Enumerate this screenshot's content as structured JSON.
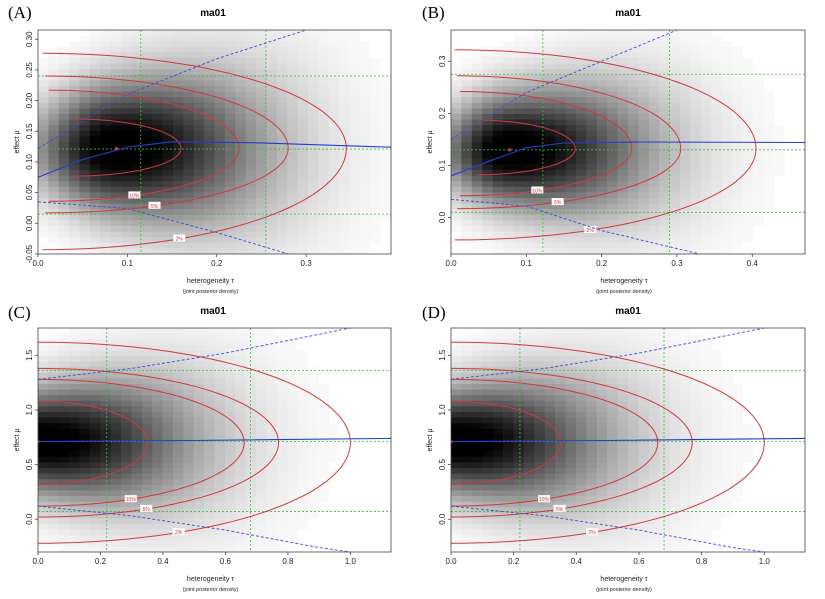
{
  "chart_data": [
    {
      "type": "heatmap",
      "panel_label": "(A)",
      "title": "ma01",
      "xlabel": "heterogeneity τ",
      "xsublabel": "(joint posterior density)",
      "ylabel": "effect μ",
      "xlim": [
        0,
        0.395
      ],
      "ylim": [
        -0.05,
        0.315
      ],
      "xticks": [
        0.0,
        0.1,
        0.2,
        0.3
      ],
      "xtick_labels": [
        "0.0",
        "0.1",
        "0.2",
        "0.3"
      ],
      "yticks": [
        -0.05,
        0.0,
        0.05,
        0.1,
        0.15,
        0.2,
        0.25,
        0.3
      ],
      "ytick_labels": [
        "-0.05",
        "0.00",
        "0.05",
        "0.10",
        "0.15",
        "0.20",
        "0.25",
        "0.30"
      ],
      "mode": [
        0.088,
        0.122
      ],
      "median_tau": 0.115,
      "quant95_tau": 0.255,
      "median_mu": 0.121,
      "ci_mu": [
        0.015,
        0.24
      ],
      "center_mu_line": [
        [
          0.0,
          0.075
        ],
        [
          0.05,
          0.104
        ],
        [
          0.1,
          0.124
        ],
        [
          0.15,
          0.133
        ],
        [
          0.25,
          0.131
        ],
        [
          0.395,
          0.124
        ]
      ],
      "upper_ci_line": [
        [
          0.0,
          0.122
        ],
        [
          0.1,
          0.21
        ],
        [
          0.2,
          0.268
        ],
        [
          0.3,
          0.315
        ]
      ],
      "lower_ci_line": [
        [
          0.0,
          0.035
        ],
        [
          0.1,
          0.024
        ],
        [
          0.2,
          -0.015
        ],
        [
          0.28,
          -0.05
        ]
      ],
      "contours": [
        {
          "label": "2%",
          "xmin": 0.005,
          "xmax": 0.345,
          "mu0": 0.122,
          "up": 0.155,
          "down": 0.165
        },
        {
          "label": "5%",
          "xmin": 0.008,
          "xmax": 0.28,
          "mu0": 0.122,
          "up": 0.118,
          "down": 0.105
        },
        {
          "label": "10%",
          "xmin": 0.012,
          "xmax": 0.225,
          "mu0": 0.122,
          "up": 0.095,
          "down": 0.086
        },
        {
          "label": "",
          "xmin": 0.04,
          "xmax": 0.16,
          "mu0": 0.122,
          "up": 0.048,
          "down": 0.045
        }
      ],
      "density": {
        "peak_tau": 0.085,
        "peak_mu": 0.122,
        "sd_mu": 0.058,
        "tau_scale_left": 0.06,
        "tau_scale_right": 0.115
      }
    },
    {
      "type": "heatmap",
      "panel_label": "(B)",
      "title": "ma01",
      "xlabel": "heterogeneity τ",
      "xsublabel": "(joint posterior density)",
      "ylabel": "effect μ",
      "xlim": [
        0,
        0.47
      ],
      "ylim": [
        -0.07,
        0.36
      ],
      "xticks": [
        0.0,
        0.1,
        0.2,
        0.3,
        0.4
      ],
      "xtick_labels": [
        "0.0",
        "0.1",
        "0.2",
        "0.3",
        "0.4"
      ],
      "yticks": [
        0.0,
        0.1,
        0.2,
        0.3
      ],
      "ytick_labels": [
        "0.0",
        "0.1",
        "0.2",
        "0.3"
      ],
      "mode": [
        0.078,
        0.13
      ],
      "median_tau": 0.122,
      "quant95_tau": 0.29,
      "median_mu": 0.13,
      "ci_mu": [
        0.01,
        0.275
      ],
      "center_mu_line": [
        [
          0.0,
          0.08
        ],
        [
          0.05,
          0.108
        ],
        [
          0.1,
          0.134
        ],
        [
          0.15,
          0.143
        ],
        [
          0.25,
          0.145
        ],
        [
          0.47,
          0.144
        ]
      ],
      "upper_ci_line": [
        [
          0.0,
          0.15
        ],
        [
          0.1,
          0.24
        ],
        [
          0.2,
          0.3
        ],
        [
          0.3,
          0.36
        ]
      ],
      "lower_ci_line": [
        [
          0.0,
          0.035
        ],
        [
          0.1,
          0.022
        ],
        [
          0.2,
          -0.025
        ],
        [
          0.33,
          -0.07
        ]
      ],
      "contours": [
        {
          "label": "2%",
          "xmin": 0.005,
          "xmax": 0.405,
          "mu0": 0.132,
          "up": 0.19,
          "down": 0.175
        },
        {
          "label": "5%",
          "xmin": 0.008,
          "xmax": 0.305,
          "mu0": 0.132,
          "up": 0.14,
          "down": 0.115
        },
        {
          "label": "10%",
          "xmin": 0.012,
          "xmax": 0.24,
          "mu0": 0.132,
          "up": 0.11,
          "down": 0.09
        },
        {
          "label": "",
          "xmin": 0.035,
          "xmax": 0.165,
          "mu0": 0.132,
          "up": 0.055,
          "down": 0.05
        }
      ],
      "density": {
        "peak_tau": 0.075,
        "peak_mu": 0.13,
        "sd_mu": 0.062,
        "tau_scale_left": 0.06,
        "tau_scale_right": 0.13
      }
    },
    {
      "type": "heatmap",
      "panel_label": "(C)",
      "title": "ma01",
      "xlabel": "heterogeneity τ",
      "xsublabel": "(joint posterior density)",
      "ylabel": "effect μ",
      "xlim": [
        0,
        1.13
      ],
      "ylim": [
        -0.3,
        1.75
      ],
      "xticks": [
        0.0,
        0.2,
        0.4,
        0.6,
        0.8,
        1.0
      ],
      "xtick_labels": [
        "0.0",
        "0.2",
        "0.4",
        "0.6",
        "0.8",
        "1.0"
      ],
      "yticks": [
        0.0,
        0.5,
        1.0,
        1.5
      ],
      "ytick_labels": [
        "0.0",
        "0.5",
        "1.0",
        "1.5"
      ],
      "mode": [
        0.0,
        0.71
      ],
      "median_tau": 0.22,
      "quant95_tau": 0.68,
      "median_mu": 0.71,
      "ci_mu": [
        0.07,
        1.36
      ],
      "center_mu_line": [
        [
          0.0,
          0.71
        ],
        [
          0.5,
          0.72
        ],
        [
          1.13,
          0.74
        ]
      ],
      "upper_ci_line": [
        [
          0.0,
          1.28
        ],
        [
          0.3,
          1.38
        ],
        [
          0.6,
          1.52
        ],
        [
          1.0,
          1.75
        ]
      ],
      "lower_ci_line": [
        [
          0.0,
          0.12
        ],
        [
          0.3,
          0.03
        ],
        [
          0.6,
          -0.1
        ],
        [
          0.9,
          -0.26
        ],
        [
          1.0,
          -0.3
        ]
      ],
      "contours": [
        {
          "label": "2%",
          "xmin": 0.0,
          "xmax": 1.0,
          "mu0": 0.7,
          "up": 0.92,
          "down": 0.92
        },
        {
          "label": "5%",
          "xmin": 0.0,
          "xmax": 0.77,
          "mu0": 0.7,
          "up": 0.68,
          "down": 0.68
        },
        {
          "label": "10%",
          "xmin": 0.0,
          "xmax": 0.66,
          "mu0": 0.7,
          "up": 0.58,
          "down": 0.58
        },
        {
          "label": "",
          "xmin": 0.0,
          "xmax": 0.35,
          "mu0": 0.7,
          "up": 0.38,
          "down": 0.38
        }
      ],
      "density": {
        "peak_tau": 0.0,
        "peak_mu": 0.71,
        "sd_mu": 0.33,
        "tau_scale_left": 0.3,
        "tau_scale_right": 0.34
      }
    },
    {
      "type": "heatmap",
      "panel_label": "(D)",
      "title": "ma01",
      "xlabel": "heterogeneity τ",
      "xsublabel": "(joint posterior density)",
      "ylabel": "effect μ",
      "xlim": [
        0,
        1.13
      ],
      "ylim": [
        -0.3,
        1.75
      ],
      "xticks": [
        0.0,
        0.2,
        0.4,
        0.6,
        0.8,
        1.0
      ],
      "xtick_labels": [
        "0.0",
        "0.2",
        "0.4",
        "0.6",
        "0.8",
        "1.0"
      ],
      "yticks": [
        0.0,
        0.5,
        1.0,
        1.5
      ],
      "ytick_labels": [
        "0.0",
        "0.5",
        "1.0",
        "1.5"
      ],
      "mode": [
        0.0,
        0.71
      ],
      "median_tau": 0.22,
      "quant95_tau": 0.68,
      "median_mu": 0.71,
      "ci_mu": [
        0.07,
        1.36
      ],
      "center_mu_line": [
        [
          0.0,
          0.71
        ],
        [
          0.5,
          0.72
        ],
        [
          1.13,
          0.74
        ]
      ],
      "upper_ci_line": [
        [
          0.0,
          1.28
        ],
        [
          0.3,
          1.38
        ],
        [
          0.6,
          1.52
        ],
        [
          1.0,
          1.75
        ]
      ],
      "lower_ci_line": [
        [
          0.0,
          0.12
        ],
        [
          0.3,
          0.03
        ],
        [
          0.6,
          -0.1
        ],
        [
          0.9,
          -0.26
        ],
        [
          1.0,
          -0.3
        ]
      ],
      "contours": [
        {
          "label": "2%",
          "xmin": 0.0,
          "xmax": 1.0,
          "mu0": 0.7,
          "up": 0.92,
          "down": 0.92
        },
        {
          "label": "5%",
          "xmin": 0.0,
          "xmax": 0.77,
          "mu0": 0.7,
          "up": 0.68,
          "down": 0.68
        },
        {
          "label": "10%",
          "xmin": 0.0,
          "xmax": 0.66,
          "mu0": 0.7,
          "up": 0.58,
          "down": 0.58
        },
        {
          "label": "",
          "xmin": 0.0,
          "xmax": 0.35,
          "mu0": 0.7,
          "up": 0.38,
          "down": 0.38
        }
      ],
      "density": {
        "peak_tau": 0.0,
        "peak_mu": 0.71,
        "sd_mu": 0.33,
        "tau_scale_left": 0.3,
        "tau_scale_right": 0.34
      }
    }
  ],
  "colors": {
    "contour": "#d03a3a",
    "mu_line": "#1f3fd0",
    "ci_line": "#3a4fe0",
    "guide": "#3cbf3c",
    "mode": "#d03a3a"
  }
}
